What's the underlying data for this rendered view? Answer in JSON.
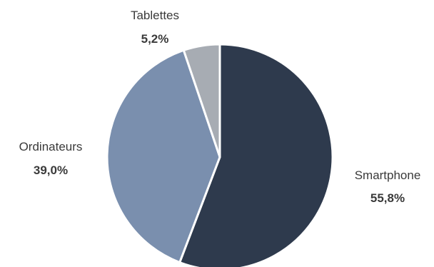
{
  "chart_data": {
    "type": "pie",
    "title": "",
    "slices": [
      {
        "label": "Smartphone",
        "value": 55.8,
        "value_label": "55,8%",
        "color": "#2e3a4d"
      },
      {
        "label": "Ordinateurs",
        "value": 39.0,
        "value_label": "39,0%",
        "color": "#7a8fae"
      },
      {
        "label": "Tablettes",
        "value": 5.2,
        "value_label": "5,2%",
        "color": "#a7acb3"
      }
    ],
    "start_angle_deg": 0,
    "direction": "clockwise",
    "slice_border_color": "#ffffff",
    "legend": "none"
  }
}
